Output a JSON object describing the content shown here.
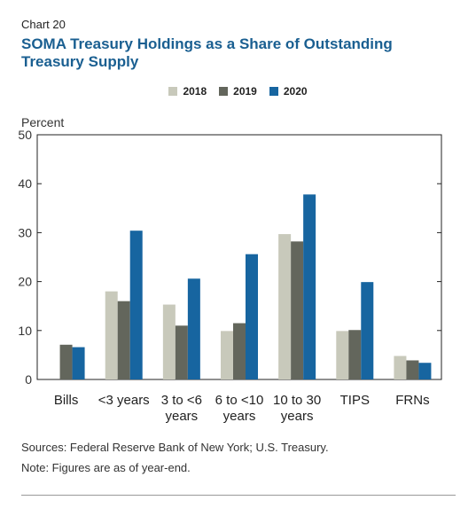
{
  "header": {
    "chart_number": "Chart 20",
    "title": "SOMA Treasury Holdings as a Share of Outstanding Treasury Supply"
  },
  "footer": {
    "sources": "Sources: Federal Reserve Bank of New York; U.S. Treasury.",
    "note": "Note: Figures are as of year-end."
  },
  "colors": {
    "2018": "#c8c9bb",
    "2019": "#63665c",
    "2020": "#1765a0"
  },
  "chart_data": {
    "type": "bar",
    "title": "SOMA Treasury Holdings as a Share of Outstanding Treasury Supply",
    "ylabel": "Percent",
    "xlabel": "",
    "ylim": [
      0,
      50
    ],
    "yticks": [
      0,
      10,
      20,
      30,
      40,
      50
    ],
    "grid": false,
    "legend_position": "top-center",
    "categories": [
      [
        "Bills"
      ],
      [
        "<3 years"
      ],
      [
        "3 to <6",
        "years"
      ],
      [
        "6 to <10",
        "years"
      ],
      [
        "10 to 30",
        "years"
      ],
      [
        "TIPS"
      ],
      [
        "FRNs"
      ]
    ],
    "series": [
      {
        "name": "2018",
        "values": [
          0,
          18,
          15.3,
          9.9,
          29.7,
          9.9,
          4.8
        ]
      },
      {
        "name": "2019",
        "values": [
          7.1,
          16,
          11,
          11.5,
          28.2,
          10.1,
          3.9
        ]
      },
      {
        "name": "2020",
        "values": [
          6.6,
          30.4,
          20.6,
          25.6,
          37.8,
          19.9,
          3.4
        ]
      }
    ]
  }
}
